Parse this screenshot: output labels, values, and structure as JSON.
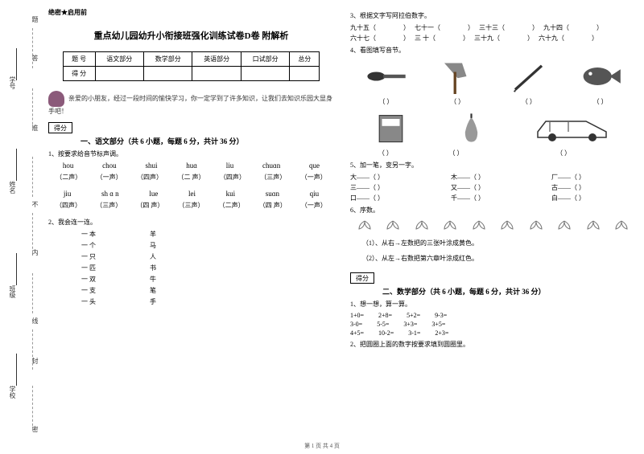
{
  "margin": {
    "labels": [
      "题",
      "答",
      "学号",
      "准",
      "姓名",
      "不",
      "内",
      "班级",
      "线",
      "封",
      "学校",
      "密"
    ]
  },
  "header": {
    "secret": "绝密★启用前",
    "title": "重点幼儿园幼升小衔接班强化训练试卷D卷 附解析"
  },
  "scoreTable": {
    "r1": [
      "题  号",
      "语文部分",
      "数学部分",
      "英语部分",
      "口试部分",
      "总分"
    ],
    "r2": [
      "得  分",
      "",
      "",
      "",
      "",
      ""
    ]
  },
  "intro": "亲爱的小朋友，经过一段时间的愉快学习，你一定学到了许多知识，让我们去知识乐园大显身手吧！",
  "scoreLabel": "得分",
  "section1": {
    "title": "一、语文部分（共 6 小题，每题 6 分，共计 36 分）",
    "q1": "1、按要求给音节标声调。",
    "pinyin1": [
      "hou",
      "chou",
      "shui",
      "huɑ",
      "liu",
      "chuɑn",
      "que"
    ],
    "tone1": [
      "（二声）",
      "（一声）",
      "（四声）",
      "（二 声）",
      "（四声）",
      "（三声）",
      "（一声）"
    ],
    "pinyin2": [
      "jiu",
      "sh ɑ n",
      "lue",
      "lei",
      "kui",
      "suɑn",
      "qiu"
    ],
    "tone2": [
      "（四声）",
      "（三声）",
      "（四 声）",
      "（三声）",
      "（二声）",
      "（四 声）",
      "（一声）"
    ],
    "q2": "2、我会连一连。",
    "match": [
      [
        "一  本",
        "羊"
      ],
      [
        "一  个",
        "马"
      ],
      [
        "一  只",
        "人"
      ],
      [
        "一  匹",
        "书"
      ],
      [
        "一  双",
        "牛"
      ],
      [
        "一  支",
        "笔"
      ],
      [
        "一  头",
        "手"
      ]
    ]
  },
  "section1r": {
    "q3": "3、根据文字写阿拉伯数字。",
    "arabic1": [
      "九十五（",
      "）",
      "七十一（",
      "）",
      "三十三（",
      "）",
      "九十四（",
      "）"
    ],
    "arabic2": [
      "六十七（",
      "）",
      "三 十（",
      "）",
      "三十九（",
      "）",
      "六十九（",
      "）"
    ],
    "q4": "4、看图填写音节。",
    "paren": "（            ）",
    "q5": "5、加一笔，变另一字。",
    "strokes": [
      [
        "大——（      ）",
        "木——（      ）",
        "厂——（      ）"
      ],
      [
        "三——（      ）",
        "又——（      ）",
        "古——（      ）"
      ],
      [
        "口——（      ）",
        "千——（      ）",
        "白——（      ）"
      ]
    ],
    "q6": "6、序数。",
    "q6a": "（1）、从右→左数把的三张叶涂成黄色。",
    "q6b": "（2）、从左→右数把第六章叶涂成红色。"
  },
  "section2": {
    "title": "二、数学部分（共 6 小题，每题 6 分，共计 36 分）",
    "q1": "1、想一想，算一算。",
    "calc": [
      [
        "1+0=",
        "2+8=",
        "5+2=",
        "9-3="
      ],
      [
        "3-0=",
        "5-5=",
        "3+3=",
        "3+5="
      ],
      [
        "4+5=",
        "10-2=",
        "3-1=",
        "2+3="
      ]
    ],
    "q2": "2、把圆圈上面的数字按要求填到圆圈里。"
  },
  "footer": "第 1 页  共 4 页"
}
